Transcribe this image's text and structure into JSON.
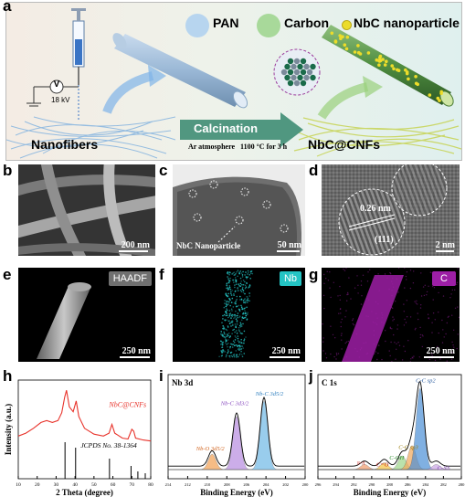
{
  "panels": {
    "a": {
      "label": "a",
      "legend": {
        "pan": "PAN",
        "carbon": "Carbon",
        "nbc": "NbC nanoparticle"
      },
      "voltage_symbol": "V",
      "voltage": "18 kV",
      "nanofibers": "Nanofibers",
      "calcination": "Calcination",
      "atmosphere": "Ar atmosphere   1100 °C for 3 h",
      "product": "NbC@CNFs"
    },
    "b": {
      "label": "b",
      "scale": "200 nm"
    },
    "c": {
      "label": "c",
      "scale": "50 nm",
      "annotation": "NbC Nanoparticle"
    },
    "d": {
      "label": "d",
      "scale": "2 nm",
      "d_spacing": "0.26 nm",
      "plane": "(111)"
    },
    "e": {
      "label": "e",
      "scale": "250 nm",
      "tag": "HAADF"
    },
    "f": {
      "label": "f",
      "scale": "250 nm",
      "tag": "Nb"
    },
    "g": {
      "label": "g",
      "scale": "250 nm",
      "tag": "C"
    },
    "h": {
      "label": "h"
    },
    "i": {
      "label": "i"
    },
    "j": {
      "label": "j"
    }
  },
  "colors": {
    "nb_map": "#24c4c4",
    "c_map": "#9d1fa6",
    "xrd_curve": "#e8332b",
    "nbc_dots": "#ecdc2a",
    "pan_fiber": "#8fb1cf",
    "nbc_fiber": "#4d8d3e"
  },
  "chart_data": [
    {
      "id": "h",
      "type": "line",
      "title": "",
      "xlabel": "2 Theta (degree)",
      "ylabel": "Intensity (a.u.)",
      "xlim": [
        10,
        80
      ],
      "x_ticks": [
        10,
        20,
        30,
        40,
        50,
        60,
        70,
        80
      ],
      "series": [
        {
          "name": "NbC@CNFs",
          "x": [
            10,
            14,
            18,
            22,
            25,
            28,
            31,
            33,
            34.5,
            35.5,
            37,
            39,
            40.6,
            42,
            45,
            50,
            55,
            58,
            59.5,
            61,
            65,
            68,
            70,
            71,
            72,
            76,
            80
          ],
          "y": [
            0.5,
            0.53,
            0.58,
            0.64,
            0.66,
            0.64,
            0.66,
            0.74,
            0.9,
            0.97,
            0.8,
            0.75,
            0.86,
            0.7,
            0.58,
            0.52,
            0.5,
            0.53,
            0.62,
            0.53,
            0.48,
            0.47,
            0.57,
            0.55,
            0.48,
            0.46,
            0.45
          ]
        }
      ],
      "reference": {
        "name": "JCPDS No. 38-1364",
        "positions": [
          34.7,
          40.3,
          58.2,
          69.6,
          73.2,
          77.1
        ],
        "heights": [
          1.0,
          0.85,
          0.55,
          0.35,
          0.2,
          0.15
        ]
      }
    },
    {
      "id": "i",
      "type": "line",
      "title": "Nb 3d",
      "xlabel": "Binding Energy (eV)",
      "ylabel": "",
      "xlim": [
        214,
        200
      ],
      "x_ticks": [
        214,
        212,
        210,
        208,
        206,
        204,
        202,
        200
      ],
      "peaks": [
        {
          "name": "Nb-O 3d5/2",
          "position": 209.5,
          "height": 0.18
        },
        {
          "name": "Nb-C 3d3/2",
          "position": 207.0,
          "height": 0.62
        },
        {
          "name": "Nb-C 3d5/2",
          "position": 204.2,
          "height": 0.8
        }
      ]
    },
    {
      "id": "j",
      "type": "line",
      "title": "C 1s",
      "xlabel": "Binding Energy (eV)",
      "ylabel": "",
      "xlim": [
        296,
        280
      ],
      "x_ticks": [
        296,
        294,
        292,
        290,
        288,
        286,
        284,
        282,
        280
      ],
      "peaks": [
        {
          "name": "π-π",
          "position": 290.8,
          "height": 0.06
        },
        {
          "name": "C=O",
          "position": 288.6,
          "height": 0.08
        },
        {
          "name": "C-OH",
          "position": 286.6,
          "height": 0.16
        },
        {
          "name": "C-C sp3",
          "position": 285.5,
          "height": 0.28
        },
        {
          "name": "C-C sp2",
          "position": 284.6,
          "height": 0.95
        },
        {
          "name": "C-Nb",
          "position": 282.8,
          "height": 0.06
        }
      ]
    }
  ]
}
